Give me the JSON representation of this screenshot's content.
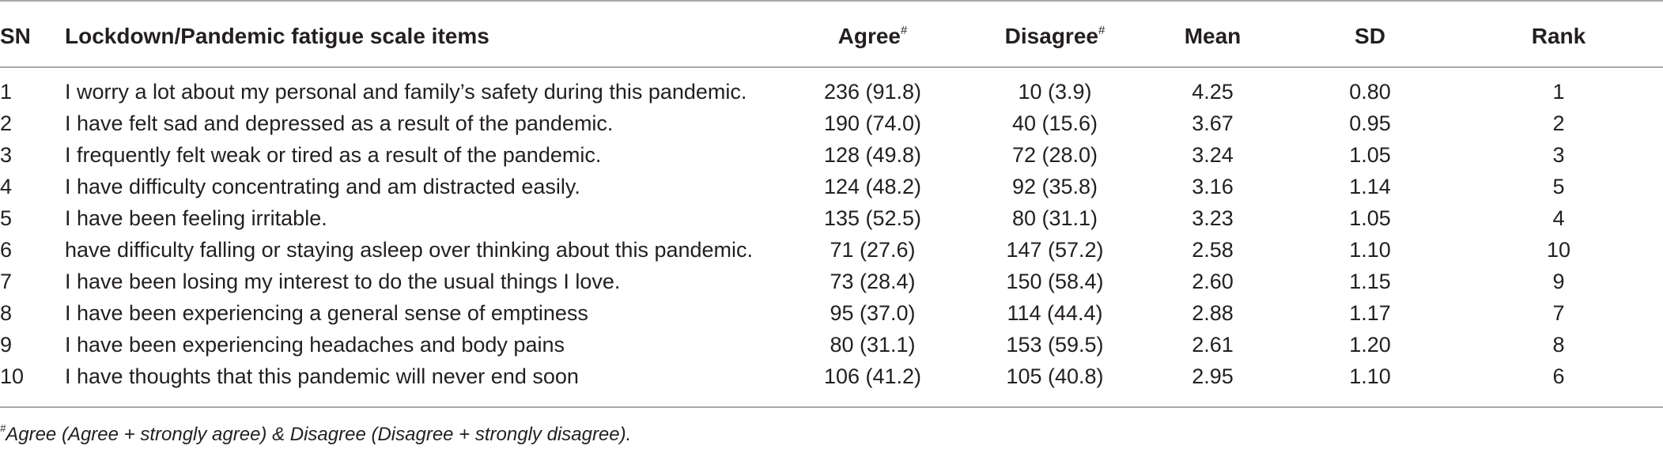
{
  "table": {
    "headers": {
      "sn": "SN",
      "item": "Lockdown/Pandemic fatigue scale items",
      "agree": "Agree",
      "disagree": "Disagree",
      "mean": "Mean",
      "sd": "SD",
      "rank": "Rank",
      "marker": "#"
    },
    "rows": [
      {
        "sn": "1",
        "item": "I worry a lot about my personal and family’s safety during this pandemic.",
        "agree": "236 (91.8)",
        "disagree": "10 (3.9)",
        "mean": "4.25",
        "sd": "0.80",
        "rank": "1"
      },
      {
        "sn": "2",
        "item": "I have felt sad and depressed as a result of the pandemic.",
        "agree": "190 (74.0)",
        "disagree": "40 (15.6)",
        "mean": "3.67",
        "sd": "0.95",
        "rank": "2"
      },
      {
        "sn": "3",
        "item": "I frequently felt weak or tired as a result of the pandemic.",
        "agree": "128 (49.8)",
        "disagree": "72 (28.0)",
        "mean": "3.24",
        "sd": "1.05",
        "rank": "3"
      },
      {
        "sn": "4",
        "item": "I have difficulty concentrating and am distracted easily.",
        "agree": "124 (48.2)",
        "disagree": "92 (35.8)",
        "mean": "3.16",
        "sd": "1.14",
        "rank": "5"
      },
      {
        "sn": "5",
        "item": "I have been feeling irritable.",
        "agree": "135 (52.5)",
        "disagree": "80 (31.1)",
        "mean": "3.23",
        "sd": "1.05",
        "rank": "4"
      },
      {
        "sn": "6",
        "item": "have difficulty falling or staying asleep over thinking about this pandemic.",
        "agree": "71 (27.6)",
        "disagree": "147 (57.2)",
        "mean": "2.58",
        "sd": "1.10",
        "rank": "10"
      },
      {
        "sn": "7",
        "item": "I have been losing my interest to do the usual things I love.",
        "agree": "73 (28.4)",
        "disagree": "150 (58.4)",
        "mean": "2.60",
        "sd": "1.15",
        "rank": "9"
      },
      {
        "sn": "8",
        "item": "I have been experiencing a general sense of emptiness",
        "agree": "95 (37.0)",
        "disagree": "114 (44.4)",
        "mean": "2.88",
        "sd": "1.17",
        "rank": "7"
      },
      {
        "sn": "9",
        "item": "I have been experiencing headaches and body pains",
        "agree": "80 (31.1)",
        "disagree": "153 (59.5)",
        "mean": "2.61",
        "sd": "1.20",
        "rank": "8"
      },
      {
        "sn": "10",
        "item": "I have thoughts that this pandemic will never end soon",
        "agree": "106 (41.2)",
        "disagree": "105 (40.8)",
        "mean": "2.95",
        "sd": "1.10",
        "rank": "6"
      }
    ]
  },
  "footnote": {
    "marker": "#",
    "text": "Agree (Agree + strongly agree) & Disagree (Disagree + strongly disagree)."
  }
}
